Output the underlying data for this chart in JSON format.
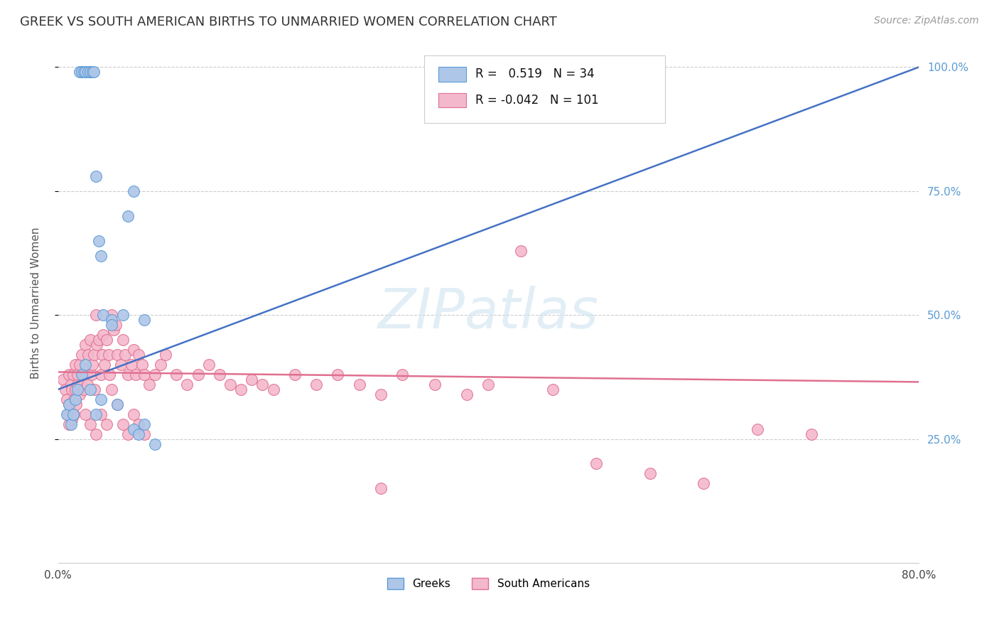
{
  "title": "GREEK VS SOUTH AMERICAN BIRTHS TO UNMARRIED WOMEN CORRELATION CHART",
  "source": "Source: ZipAtlas.com",
  "ylabel": "Births to Unmarried Women",
  "xlim": [
    0.0,
    0.8
  ],
  "ylim": [
    0.0,
    1.05
  ],
  "yticks": [
    0.25,
    0.5,
    0.75,
    1.0
  ],
  "ytick_labels": [
    "25.0%",
    "50.0%",
    "75.0%",
    "100.0%"
  ],
  "xtick_labels": [
    "0.0%",
    "80.0%"
  ],
  "xtick_vals": [
    0.0,
    0.8
  ],
  "greek_color": "#aec6e8",
  "greek_edge_color": "#5b9bd5",
  "sa_color": "#f4b8cc",
  "sa_edge_color": "#e07090",
  "trend_greek_color": "#4472c4",
  "trend_sa_color": "#e07090",
  "watermark": "ZIPatlas",
  "legend_R_greek": "0.519",
  "legend_N_greek": "34",
  "legend_R_sa": "-0.042",
  "legend_N_sa": "101",
  "greek_x": [
    0.02,
    0.022,
    0.024,
    0.025,
    0.028,
    0.03,
    0.032,
    0.033,
    0.008,
    0.01,
    0.012,
    0.014,
    0.016,
    0.018,
    0.035,
    0.038,
    0.04,
    0.042,
    0.05,
    0.055,
    0.07,
    0.075,
    0.08,
    0.09,
    0.022,
    0.025,
    0.03,
    0.035,
    0.04,
    0.05,
    0.06,
    0.065,
    0.07,
    0.08
  ],
  "greek_y": [
    0.99,
    0.99,
    0.99,
    0.99,
    0.99,
    0.99,
    0.99,
    0.99,
    0.3,
    0.32,
    0.28,
    0.3,
    0.33,
    0.35,
    0.78,
    0.65,
    0.62,
    0.5,
    0.49,
    0.32,
    0.27,
    0.26,
    0.28,
    0.24,
    0.38,
    0.4,
    0.35,
    0.3,
    0.33,
    0.48,
    0.5,
    0.7,
    0.75,
    0.49
  ],
  "sa_x": [
    0.005,
    0.007,
    0.008,
    0.009,
    0.01,
    0.01,
    0.01,
    0.012,
    0.012,
    0.013,
    0.013,
    0.014,
    0.015,
    0.015,
    0.016,
    0.016,
    0.017,
    0.018,
    0.018,
    0.02,
    0.02,
    0.021,
    0.022,
    0.023,
    0.024,
    0.025,
    0.026,
    0.027,
    0.028,
    0.03,
    0.031,
    0.032,
    0.033,
    0.034,
    0.035,
    0.036,
    0.038,
    0.04,
    0.041,
    0.042,
    0.043,
    0.045,
    0.047,
    0.048,
    0.05,
    0.052,
    0.054,
    0.055,
    0.058,
    0.06,
    0.062,
    0.065,
    0.068,
    0.07,
    0.072,
    0.075,
    0.078,
    0.08,
    0.085,
    0.09,
    0.095,
    0.1,
    0.11,
    0.12,
    0.13,
    0.14,
    0.15,
    0.16,
    0.17,
    0.18,
    0.19,
    0.2,
    0.22,
    0.24,
    0.26,
    0.28,
    0.3,
    0.32,
    0.35,
    0.38,
    0.4,
    0.43,
    0.46,
    0.5,
    0.55,
    0.6,
    0.65,
    0.7,
    0.025,
    0.03,
    0.035,
    0.04,
    0.045,
    0.05,
    0.055,
    0.06,
    0.065,
    0.07,
    0.075,
    0.08,
    0.3
  ],
  "sa_y": [
    0.37,
    0.35,
    0.33,
    0.3,
    0.32,
    0.28,
    0.38,
    0.31,
    0.36,
    0.29,
    0.35,
    0.38,
    0.33,
    0.3,
    0.35,
    0.4,
    0.32,
    0.36,
    0.38,
    0.34,
    0.4,
    0.36,
    0.42,
    0.38,
    0.35,
    0.44,
    0.38,
    0.36,
    0.42,
    0.45,
    0.38,
    0.4,
    0.42,
    0.35,
    0.5,
    0.44,
    0.45,
    0.38,
    0.42,
    0.46,
    0.4,
    0.45,
    0.42,
    0.38,
    0.5,
    0.47,
    0.48,
    0.42,
    0.4,
    0.45,
    0.42,
    0.38,
    0.4,
    0.43,
    0.38,
    0.42,
    0.4,
    0.38,
    0.36,
    0.38,
    0.4,
    0.42,
    0.38,
    0.36,
    0.38,
    0.4,
    0.38,
    0.36,
    0.35,
    0.37,
    0.36,
    0.35,
    0.38,
    0.36,
    0.38,
    0.36,
    0.34,
    0.38,
    0.36,
    0.34,
    0.36,
    0.63,
    0.35,
    0.2,
    0.18,
    0.16,
    0.27,
    0.26,
    0.3,
    0.28,
    0.26,
    0.3,
    0.28,
    0.35,
    0.32,
    0.28,
    0.26,
    0.3,
    0.28,
    0.26,
    0.15
  ],
  "trend_greek_x0": 0.0,
  "trend_greek_y0": 0.35,
  "trend_greek_x1": 0.8,
  "trend_greek_y1": 1.0,
  "trend_sa_x0": 0.0,
  "trend_sa_y0": 0.385,
  "trend_sa_x1": 0.8,
  "trend_sa_y1": 0.365
}
